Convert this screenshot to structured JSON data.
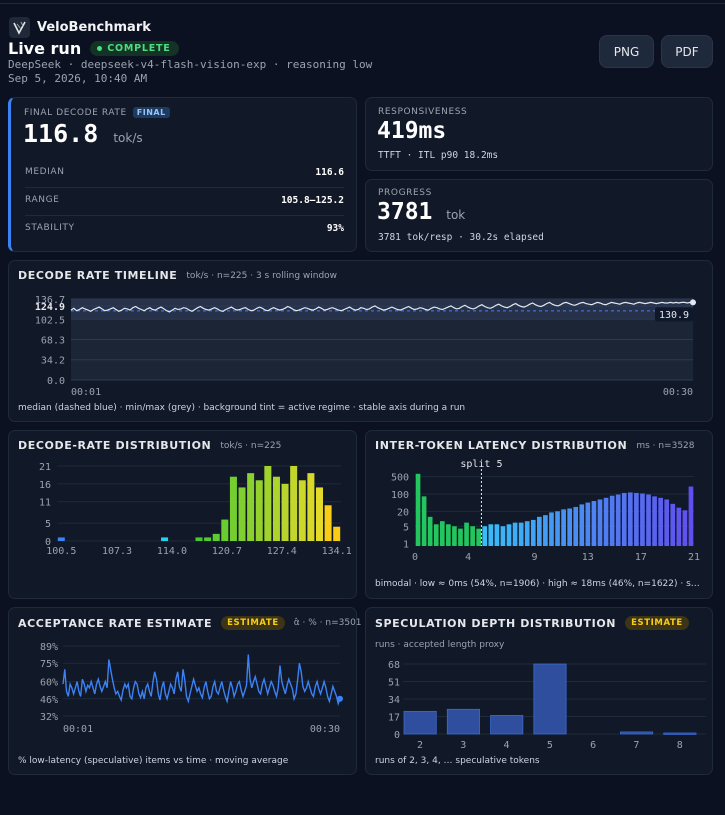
{
  "header": {
    "brand": "VeloBenchmark",
    "run_title": "Live run",
    "status": "COMPLETE",
    "model_line": "DeepSeek · deepseek-v4-flash-vision-exp · reasoning low",
    "date_line": "Sep 5, 2026, 10:40 AM",
    "png_label": "PNG",
    "pdf_label": "PDF"
  },
  "colors": {
    "accent": "#3b82f6",
    "success": "#4ade80",
    "estimate": "#facc15"
  },
  "decode": {
    "label": "FINAL DECODE RATE",
    "badge": "FINAL",
    "value": "116.8",
    "unit": "tok/s",
    "median_label": "MEDIAN",
    "median": "116.6",
    "range_label": "RANGE",
    "range": "105.8–125.2",
    "stability_label": "STABILITY",
    "stability": "93%"
  },
  "responsiveness": {
    "label": "RESPONSIVENESS",
    "value": "419ms",
    "sub": "TTFT · ITL p90 18.2ms"
  },
  "progress": {
    "label": "PROGRESS",
    "value": "3781",
    "unit": "tok",
    "sub": "3781 tok/resp · 30.2s elapsed"
  },
  "timeline": {
    "title": "DECODE RATE TIMELINE",
    "hint": "tok/s · n=225 · 3 s rolling window",
    "footnote": "median (dashed blue) · min/max (grey) · background tint = active regime · stable axis during a run",
    "chart_data": {
      "type": "line",
      "y_ticks": [
        "136.7",
        "124.9",
        "102.5",
        "68.3",
        "34.2",
        "0.0"
      ],
      "x_ticks": [
        "00:01",
        "00:30"
      ],
      "ylim": [
        0,
        136.7
      ],
      "last_value": "130.9",
      "median": 116.6,
      "values": [
        118,
        121,
        117,
        119,
        122,
        120,
        118,
        116,
        119,
        121,
        123,
        120,
        117,
        118,
        120,
        122,
        119,
        116,
        118,
        121,
        120,
        118,
        122,
        124,
        121,
        119,
        117,
        120,
        122,
        119,
        118,
        121,
        123,
        120,
        117,
        115,
        118,
        121,
        119,
        120,
        122,
        121,
        118,
        116,
        119,
        122,
        124,
        121,
        119,
        118,
        120,
        122,
        120,
        117,
        116,
        119,
        121,
        123,
        120,
        118,
        119,
        121,
        122,
        119,
        117,
        118,
        121,
        123,
        121,
        118,
        117,
        120,
        122,
        120,
        118,
        119,
        121,
        124,
        122,
        119,
        117,
        118,
        120,
        122,
        121,
        119,
        118,
        120,
        123,
        121,
        118,
        119,
        121,
        122,
        120,
        118,
        117,
        119,
        121,
        123,
        120,
        118,
        119,
        122,
        121,
        119,
        120,
        123,
        125,
        122,
        120,
        118,
        119,
        121,
        123,
        121,
        119,
        118,
        120,
        122,
        124,
        121,
        119,
        120,
        122,
        121,
        119,
        118,
        121,
        123,
        122,
        120,
        119,
        121,
        123,
        125,
        122,
        120,
        121,
        124,
        126,
        123,
        121,
        120,
        122,
        125,
        127,
        124,
        122,
        121,
        123,
        126,
        128,
        125,
        123,
        122,
        124,
        127,
        129,
        126,
        124,
        123,
        125,
        128,
        130,
        127,
        125,
        124,
        126,
        129,
        131,
        128,
        126,
        125,
        127,
        130,
        131,
        129,
        127,
        126,
        128,
        130,
        131,
        129,
        128,
        127,
        129,
        131,
        130,
        128,
        127,
        129,
        131,
        130,
        129,
        128,
        130,
        131,
        130,
        129,
        128,
        130,
        131,
        130,
        129,
        130,
        131,
        130,
        129,
        130,
        131,
        130,
        130,
        131,
        130,
        131,
        130,
        131,
        131,
        130,
        131,
        130.9
      ]
    }
  },
  "distribution": {
    "title": "DECODE-RATE DISTRIBUTION",
    "hint": "tok/s · n=225",
    "chart_data": {
      "type": "bar",
      "y_ticks": [
        "21",
        "16",
        "11",
        "5",
        "0"
      ],
      "ylim": [
        0,
        21
      ],
      "x_ticks": [
        "100.5",
        "107.3",
        "114.0",
        "120.7",
        "127.4",
        "134.1"
      ],
      "bin_range": [
        100.5,
        134.1
      ],
      "values": [
        1,
        0,
        0,
        0,
        0,
        0,
        0,
        0,
        0,
        0,
        0,
        0,
        1,
        0,
        0,
        0,
        1,
        1,
        2,
        6,
        18,
        15,
        19,
        17,
        21,
        18,
        16,
        21,
        17,
        19,
        15,
        10,
        4
      ]
    }
  },
  "itl": {
    "title": "INTER-TOKEN LATENCY DISTRIBUTION",
    "hint": "ms · n=3528",
    "split_label": "split 5",
    "footnote": "bimodal · low ≈ 0ms (54%, n=1906) · high ≈ 18ms (46%, n=1622) · split at 5ms",
    "chart_data": {
      "type": "bar",
      "scale": "log",
      "y_ticks": [
        "500",
        "100",
        "20",
        "5",
        "1"
      ],
      "x_ticks": [
        "0",
        "4",
        "9",
        "13",
        "17",
        "21"
      ],
      "xlim": [
        0,
        21
      ],
      "split": 5,
      "values": [
        650,
        80,
        12,
        6,
        8,
        6,
        5,
        4,
        7,
        5,
        4,
        5,
        6,
        6,
        5,
        6,
        7,
        7,
        8,
        9,
        12,
        14,
        18,
        20,
        24,
        26,
        30,
        38,
        45,
        52,
        60,
        70,
        85,
        95,
        110,
        115,
        110,
        105,
        95,
        80,
        70,
        60,
        40,
        28,
        22,
        200
      ]
    }
  },
  "acceptance": {
    "title": "ACCEPTANCE RATE ESTIMATE",
    "badge": "ESTIMATE",
    "hint": "α̂ · % · n=3501",
    "footnote": "% low-latency (speculative) items vs time · moving average",
    "chart_data": {
      "type": "line",
      "y_ticks": [
        "89%",
        "75%",
        "60%",
        "46%",
        "32%"
      ],
      "ylim": [
        32,
        89
      ],
      "x_ticks": [
        "00:01",
        "00:30"
      ],
      "values": [
        58,
        70,
        52,
        48,
        58,
        55,
        50,
        55,
        60,
        52,
        48,
        62,
        58,
        52,
        57,
        55,
        60,
        55,
        50,
        58,
        62,
        56,
        52,
        56,
        60,
        55,
        78,
        70,
        62,
        55,
        50,
        52,
        48,
        45,
        53,
        58,
        55,
        58,
        48,
        46,
        55,
        60,
        58,
        50,
        47,
        52,
        46,
        55,
        58,
        52,
        48,
        60,
        68,
        62,
        50,
        45,
        55,
        60,
        50,
        46,
        52,
        58,
        55,
        50,
        62,
        68,
        56,
        52,
        70,
        62,
        48,
        44,
        50,
        56,
        62,
        57,
        52,
        55,
        50,
        47,
        55,
        60,
        52,
        46,
        48,
        56,
        60,
        52,
        50,
        55,
        60,
        53,
        48,
        44,
        52,
        60,
        55,
        48,
        52,
        58,
        60,
        53,
        48,
        52,
        57,
        82,
        62,
        55,
        60,
        64,
        58,
        52,
        50,
        58,
        62,
        56,
        50,
        55,
        60,
        57,
        52,
        48,
        55,
        73,
        60,
        55,
        50,
        57,
        62,
        58,
        54,
        46,
        50,
        62,
        75,
        68,
        56,
        52,
        55,
        60,
        55,
        50,
        48,
        56,
        60,
        54,
        50,
        55,
        60,
        55,
        48,
        44,
        50,
        56,
        52,
        48,
        42,
        46
      ]
    }
  },
  "speculation": {
    "title": "SPECULATION DEPTH DISTRIBUTION",
    "badge": "ESTIMATE",
    "sub": "runs · accepted length proxy",
    "footnote": "runs of 2, 3, 4, … speculative tokens",
    "chart_data": {
      "type": "bar",
      "categories": [
        "2",
        "3",
        "4",
        "5",
        "6",
        "7",
        "8"
      ],
      "values": [
        22,
        24,
        18,
        68,
        0,
        2,
        1
      ],
      "y_ticks": [
        "68",
        "51",
        "34",
        "17",
        "0"
      ],
      "ylim": [
        0,
        68
      ]
    }
  }
}
